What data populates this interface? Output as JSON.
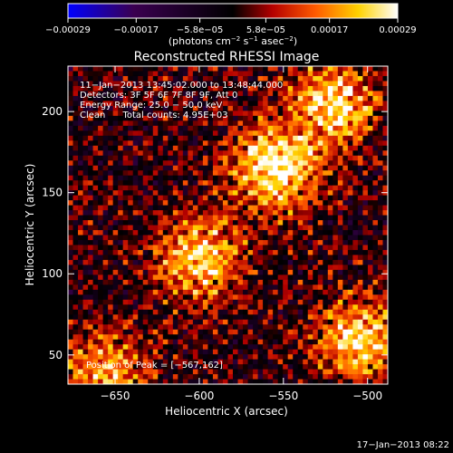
{
  "chart_data": {
    "type": "heatmap",
    "title": "Reconstructed RHESSI Image",
    "xlabel": "Heliocentric X (arcsec)",
    "ylabel": "Heliocentric Y (arcsec)",
    "xlim": [
      -678,
      -488
    ],
    "ylim": [
      32,
      228
    ],
    "xticks": [
      -650,
      -600,
      -550,
      -500
    ],
    "yticks": [
      50,
      100,
      150,
      200
    ],
    "xtick_labels": [
      "−650",
      "−600",
      "−550",
      "−500"
    ],
    "ytick_labels": [
      "50",
      "100",
      "150",
      "200"
    ],
    "colorbar": {
      "ticks": [
        -0.00029,
        -0.00017,
        -5.8e-05,
        5.8e-05,
        0.00017,
        0.00029
      ],
      "tick_labels": [
        "−0.00029",
        "−0.00017",
        "−5.8e−05",
        "5.8e−05",
        "0.00017",
        "0.00029"
      ],
      "units_prefix": "(photons cm",
      "units_sup1": "−2",
      "units_mid": " s",
      "units_sup2": "−1",
      "units_mid2": " asec",
      "units_sup3": "−2",
      "units_suffix": ")"
    },
    "info_lines": [
      "11−Jan−2013 13:45:02.000 to 13:48:44.000",
      "Detectors: 3F 5F 6F 7F 8F 9F, Att 0",
      "Energy Range: 25.0 − 50.0 keV",
      "Clean      Total counts: 4.95E+03"
    ],
    "peak_label": "Position of Peak = [−567,162]",
    "peak": [
      -567,
      162
    ],
    "timestamp": "17−Jan−2013 08:22",
    "value_range": [
      -0.00029,
      0.00029
    ],
    "sources": [
      {
        "x": -555,
        "y": 165,
        "peak": 0.00029
      },
      {
        "x": -520,
        "y": 205,
        "peak": 0.00025
      },
      {
        "x": -600,
        "y": 110,
        "peak": 0.00024
      },
      {
        "x": -505,
        "y": 60,
        "peak": 0.00024
      },
      {
        "x": -655,
        "y": 40,
        "peak": 0.0002
      }
    ],
    "colors": {
      "background": "#000000",
      "axis": "#ffffff",
      "colormap": [
        "#0000ff",
        "#3a0050",
        "#000000",
        "#b40000",
        "#ff5a00",
        "#ffd200",
        "#ffffff"
      ]
    }
  }
}
